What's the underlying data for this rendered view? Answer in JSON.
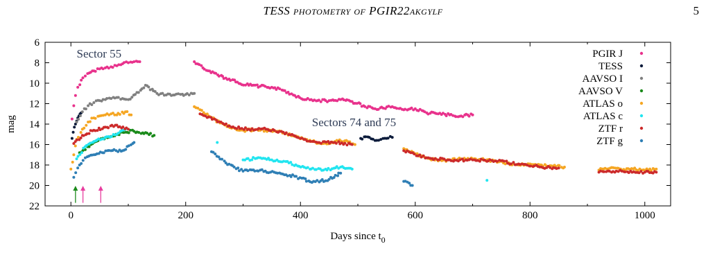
{
  "header": {
    "title": "TESS photometry of PGIR22akgylf",
    "page_number": "5"
  },
  "chart_data": {
    "type": "scatter",
    "xlabel": "Days since t",
    "xlabel_sub": "0",
    "ylabel": "mag",
    "xlim": [
      -45,
      1045
    ],
    "ylim": [
      22,
      6
    ],
    "inverted_y": true,
    "x_ticks": [
      "0",
      "200",
      "400",
      "600",
      "800",
      "1000"
    ],
    "y_ticks": [
      "6",
      "8",
      "10",
      "12",
      "14",
      "16",
      "18",
      "20",
      "22"
    ],
    "legend_position": "top-right",
    "annotations": [
      {
        "text": "Sector 55",
        "x": 10,
        "y": 7.5
      },
      {
        "text": "Sectors 74 and 75",
        "x": 420,
        "y": 14.2
      }
    ],
    "arrows": [
      {
        "x": 8,
        "color": "#1a8a1a"
      },
      {
        "x": 21,
        "color": "#e83e9f"
      },
      {
        "x": 52,
        "color": "#e83e9f"
      }
    ],
    "series": [
      {
        "name": "PGIR J",
        "color": "#e8328c",
        "size": 2.0,
        "points": [
          [
            2,
            13.5
          ],
          [
            5,
            12.2
          ],
          [
            8,
            11.2
          ],
          [
            12,
            10.4
          ],
          [
            18,
            9.7
          ],
          [
            25,
            9.3
          ],
          [
            32,
            9.0
          ],
          [
            40,
            8.8
          ],
          [
            50,
            8.6
          ],
          [
            60,
            8.5
          ],
          [
            70,
            8.4
          ],
          [
            80,
            8.3
          ],
          [
            90,
            8.1
          ],
          [
            100,
            8.0
          ],
          [
            110,
            7.9
          ],
          [
            120,
            7.9
          ],
          [
            215,
            7.9
          ],
          [
            230,
            8.5
          ],
          [
            250,
            9.0
          ],
          [
            270,
            9.5
          ],
          [
            290,
            9.9
          ],
          [
            310,
            10.2
          ],
          [
            330,
            10.3
          ],
          [
            350,
            10.4
          ],
          [
            370,
            10.7
          ],
          [
            390,
            11.2
          ],
          [
            410,
            11.6
          ],
          [
            430,
            11.7
          ],
          [
            450,
            11.7
          ],
          [
            470,
            11.6
          ],
          [
            490,
            11.8
          ],
          [
            510,
            12.2
          ],
          [
            530,
            12.5
          ],
          [
            560,
            12.3
          ],
          [
            580,
            12.6
          ],
          [
            600,
            12.5
          ],
          [
            620,
            12.9
          ],
          [
            640,
            13.0
          ],
          [
            660,
            13.1
          ],
          [
            680,
            13.2
          ],
          [
            700,
            13.1
          ]
        ]
      },
      {
        "name": "TESS",
        "color": "#0a1a3a",
        "size": 2.0,
        "points": [
          [
            2,
            15.4
          ],
          [
            4,
            14.8
          ],
          [
            6,
            14.3
          ],
          [
            8,
            14.0
          ],
          [
            10,
            13.7
          ],
          [
            12,
            13.4
          ],
          [
            14,
            13.2
          ],
          [
            16,
            13.0
          ],
          [
            18,
            12.9
          ],
          [
            505,
            15.4
          ],
          [
            520,
            15.3
          ],
          [
            530,
            15.6
          ],
          [
            540,
            15.5
          ],
          [
            550,
            15.4
          ],
          [
            560,
            15.3
          ]
        ]
      },
      {
        "name": "AAVSO I",
        "color": "#808080",
        "size": 2.0,
        "points": [
          [
            10,
            13.8
          ],
          [
            20,
            12.8
          ],
          [
            30,
            12.2
          ],
          [
            40,
            11.9
          ],
          [
            50,
            11.7
          ],
          [
            60,
            11.6
          ],
          [
            70,
            11.5
          ],
          [
            80,
            11.4
          ],
          [
            90,
            11.5
          ],
          [
            100,
            11.6
          ],
          [
            112,
            11.1
          ],
          [
            130,
            10.2
          ],
          [
            150,
            11.0
          ],
          [
            175,
            11.2
          ],
          [
            200,
            11.1
          ],
          [
            215,
            11.0
          ]
        ]
      },
      {
        "name": "AAVSO V",
        "color": "#1a8a1a",
        "size": 2.0,
        "points": [
          [
            15,
            16.8
          ],
          [
            25,
            16.5
          ],
          [
            35,
            16.0
          ],
          [
            50,
            15.5
          ],
          [
            70,
            15.2
          ],
          [
            90,
            14.8
          ],
          [
            110,
            14.7
          ],
          [
            145,
            15.1
          ]
        ]
      },
      {
        "name": "ATLAS o",
        "color": "#f5a623",
        "size": 2.0,
        "points": [
          [
            0,
            18.4
          ],
          [
            5,
            17.0
          ],
          [
            10,
            15.5
          ],
          [
            20,
            14.5
          ],
          [
            30,
            13.8
          ],
          [
            40,
            13.4
          ],
          [
            50,
            13.2
          ],
          [
            60,
            13.1
          ],
          [
            70,
            13.0
          ],
          [
            80,
            13.1
          ],
          [
            95,
            12.8
          ],
          [
            105,
            13.1
          ],
          [
            215,
            12.3
          ],
          [
            240,
            13.2
          ],
          [
            260,
            13.9
          ],
          [
            280,
            14.4
          ],
          [
            300,
            14.6
          ],
          [
            330,
            14.6
          ],
          [
            360,
            14.7
          ],
          [
            390,
            15.2
          ],
          [
            420,
            15.7
          ],
          [
            440,
            15.9
          ],
          [
            460,
            15.7
          ],
          [
            480,
            15.6
          ],
          [
            495,
            16.0
          ],
          [
            580,
            16.4
          ],
          [
            600,
            16.9
          ],
          [
            620,
            17.3
          ],
          [
            640,
            17.6
          ],
          [
            660,
            17.5
          ],
          [
            680,
            17.4
          ],
          [
            700,
            17.4
          ],
          [
            720,
            17.5
          ],
          [
            740,
            17.6
          ],
          [
            760,
            17.8
          ],
          [
            780,
            18.0
          ],
          [
            800,
            17.9
          ],
          [
            820,
            18.0
          ],
          [
            840,
            18.1
          ],
          [
            860,
            18.2
          ],
          [
            920,
            18.5
          ],
          [
            940,
            18.3
          ],
          [
            960,
            18.5
          ],
          [
            980,
            18.4
          ],
          [
            1000,
            18.5
          ],
          [
            1020,
            18.4
          ]
        ]
      },
      {
        "name": "ATLAS c",
        "color": "#22e5f0",
        "size": 2.0,
        "points": [
          [
            10,
            17.4
          ],
          [
            25,
            16.2
          ],
          [
            40,
            15.7
          ],
          [
            60,
            15.3
          ],
          [
            80,
            15.0
          ],
          [
            95,
            14.5
          ],
          [
            255,
            15.8
          ],
          [
            300,
            17.5
          ],
          [
            330,
            17.3
          ],
          [
            350,
            17.5
          ],
          [
            380,
            17.8
          ],
          [
            410,
            18.3
          ],
          [
            440,
            18.5
          ],
          [
            470,
            18.2
          ],
          [
            490,
            18.4
          ],
          [
            725,
            19.5
          ]
        ]
      },
      {
        "name": "ZTF r",
        "color": "#cc2a2a",
        "size": 2.0,
        "points": [
          [
            5,
            15.9
          ],
          [
            20,
            15.1
          ],
          [
            40,
            14.6
          ],
          [
            60,
            14.3
          ],
          [
            80,
            14.1
          ],
          [
            100,
            14.5
          ],
          [
            225,
            13.0
          ],
          [
            250,
            13.5
          ],
          [
            280,
            14.3
          ],
          [
            310,
            14.5
          ],
          [
            340,
            14.5
          ],
          [
            370,
            14.8
          ],
          [
            400,
            15.4
          ],
          [
            430,
            15.8
          ],
          [
            460,
            15.8
          ],
          [
            490,
            16.0
          ],
          [
            580,
            16.6
          ],
          [
            620,
            17.3
          ],
          [
            660,
            17.5
          ],
          [
            700,
            17.5
          ],
          [
            740,
            17.6
          ],
          [
            780,
            17.9
          ],
          [
            820,
            18.2
          ],
          [
            850,
            18.3
          ],
          [
            920,
            18.7
          ],
          [
            960,
            18.6
          ],
          [
            1000,
            18.7
          ],
          [
            1020,
            18.7
          ]
        ]
      },
      {
        "name": "ZTF g",
        "color": "#2f7fb5",
        "size": 2.0,
        "points": [
          [
            5,
            19.2
          ],
          [
            15,
            18.0
          ],
          [
            25,
            17.3
          ],
          [
            40,
            17.0
          ],
          [
            55,
            16.8
          ],
          [
            70,
            16.6
          ],
          [
            90,
            16.6
          ],
          [
            110,
            15.8
          ],
          [
            245,
            16.7
          ],
          [
            270,
            17.8
          ],
          [
            300,
            18.6
          ],
          [
            330,
            18.5
          ],
          [
            360,
            18.8
          ],
          [
            390,
            19.1
          ],
          [
            420,
            19.7
          ],
          [
            450,
            19.4
          ],
          [
            470,
            18.8
          ],
          [
            580,
            19.6
          ],
          [
            595,
            20.0
          ]
        ]
      }
    ]
  }
}
